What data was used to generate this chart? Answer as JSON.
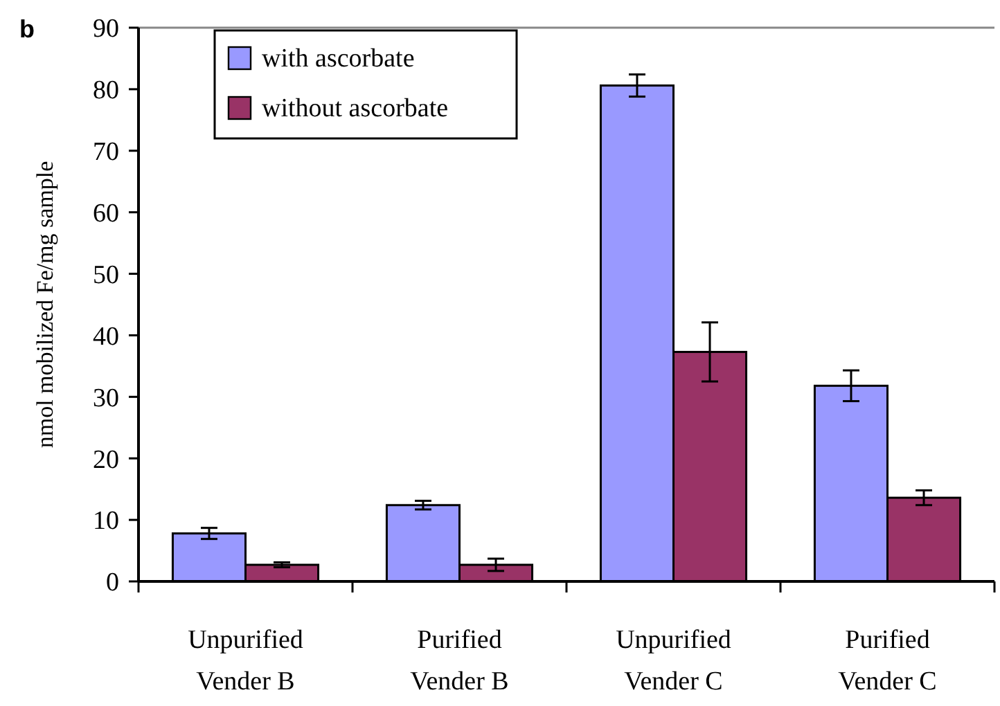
{
  "chart_data": {
    "type": "bar",
    "ylabel": "nmol mobilized Fe/mg sample",
    "annotations": [
      "b"
    ],
    "categories": [
      "Unpurified\nVender B",
      "Purified\nVender B",
      "Unpurified\nVender C",
      "Purified\nVender C"
    ],
    "series": [
      {
        "name": "with ascorbate",
        "color": "#9999ff",
        "values": [
          7.8,
          12.4,
          80.6,
          31.8
        ],
        "errors": [
          0.9,
          0.7,
          1.8,
          2.5
        ]
      },
      {
        "name": "without ascorbate",
        "color": "#993366",
        "values": [
          2.7,
          2.7,
          37.3,
          13.6
        ],
        "errors": [
          0.4,
          1,
          4.8,
          1.2
        ]
      }
    ],
    "ylim": [
      0,
      90
    ],
    "yticks": [
      0,
      10,
      20,
      30,
      40,
      50,
      60,
      70,
      80,
      90
    ],
    "grid": false,
    "legend": "top left"
  }
}
